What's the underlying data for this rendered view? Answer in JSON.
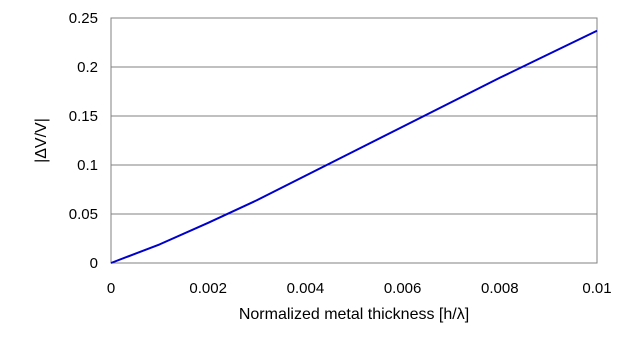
{
  "chart_data": {
    "type": "line",
    "title": "",
    "xlabel": "Normalized metal thickness [h/λ]",
    "ylabel": "|ΔV/V|",
    "xlim": [
      0,
      0.01
    ],
    "ylim": [
      0,
      0.25
    ],
    "x_ticks": [
      "0",
      "0.002",
      "0.004",
      "0.006",
      "0.008",
      "0.01"
    ],
    "y_ticks": [
      "0",
      "0.05",
      "0.1",
      "0.15",
      "0.2",
      "0.25"
    ],
    "grid": true,
    "legend": "none",
    "series": [
      {
        "color": "#0000cc",
        "x": [
          0,
          0.001,
          0.002,
          0.003,
          0.004,
          0.005,
          0.006,
          0.007,
          0.008,
          0.009,
          0.01
        ],
        "y": [
          0,
          0.019,
          0.041,
          0.064,
          0.089,
          0.114,
          0.139,
          0.164,
          0.189,
          0.213,
          0.237
        ]
      }
    ]
  }
}
